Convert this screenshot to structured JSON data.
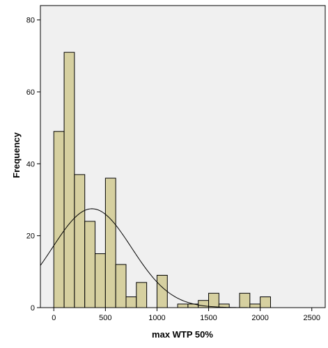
{
  "chart_data": {
    "type": "bar",
    "title": "",
    "xlabel": "max WTP 50%",
    "ylabel": "Frequency",
    "xlim": [
      -130,
      2630
    ],
    "ylim": [
      0,
      84
    ],
    "x_ticks": [
      0,
      500,
      1000,
      1500,
      2000,
      2500
    ],
    "y_ticks": [
      0,
      20,
      40,
      60,
      80
    ],
    "bin_width": 100,
    "grid": false,
    "bins": [
      {
        "start": 0,
        "end": 100,
        "count": 49
      },
      {
        "start": 100,
        "end": 200,
        "count": 71
      },
      {
        "start": 200,
        "end": 300,
        "count": 37
      },
      {
        "start": 300,
        "end": 400,
        "count": 24
      },
      {
        "start": 400,
        "end": 500,
        "count": 15
      },
      {
        "start": 500,
        "end": 600,
        "count": 36
      },
      {
        "start": 600,
        "end": 700,
        "count": 12
      },
      {
        "start": 700,
        "end": 800,
        "count": 3
      },
      {
        "start": 800,
        "end": 900,
        "count": 7
      },
      {
        "start": 900,
        "end": 1000,
        "count": 0
      },
      {
        "start": 1000,
        "end": 1100,
        "count": 9
      },
      {
        "start": 1100,
        "end": 1200,
        "count": 0
      },
      {
        "start": 1200,
        "end": 1300,
        "count": 1
      },
      {
        "start": 1300,
        "end": 1400,
        "count": 1
      },
      {
        "start": 1400,
        "end": 1500,
        "count": 2
      },
      {
        "start": 1500,
        "end": 1600,
        "count": 4
      },
      {
        "start": 1600,
        "end": 1700,
        "count": 1
      },
      {
        "start": 1700,
        "end": 1800,
        "count": 0
      },
      {
        "start": 1800,
        "end": 1900,
        "count": 4
      },
      {
        "start": 1900,
        "end": 2000,
        "count": 1
      },
      {
        "start": 2000,
        "end": 2100,
        "count": 3
      }
    ],
    "normal_curve": {
      "mean": 370,
      "sd": 383,
      "peak": 27.5
    },
    "colors": {
      "plot_background": "#f0f0f0",
      "bar_fill": "#d6d0a0",
      "bar_stroke": "#000000",
      "curve": "#000000"
    }
  }
}
